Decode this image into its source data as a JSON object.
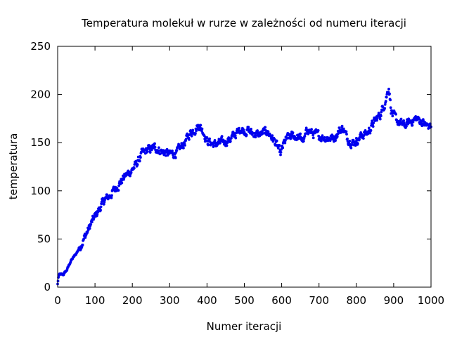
{
  "chart_data": {
    "type": "scatter",
    "title": "Temperatura molekuł w rurze w zależności od numeru iteracji",
    "xlabel": "Numer iteracji",
    "ylabel": "temperatura",
    "xlim": [
      0,
      1000
    ],
    "ylim": [
      0,
      250
    ],
    "xticks": [
      0,
      100,
      200,
      300,
      400,
      500,
      600,
      700,
      800,
      900,
      1000
    ],
    "yticks": [
      0,
      50,
      100,
      150,
      200,
      250
    ],
    "grid": false,
    "legend": "none",
    "point_color": "#0000ee",
    "series": [
      {
        "anchors_x": [
          0,
          2,
          5,
          15,
          25,
          35,
          50,
          65,
          80,
          95,
          110,
          125,
          140,
          160,
          180,
          200,
          215,
          225,
          240,
          260,
          280,
          300,
          320,
          340,
          355,
          370,
          380,
          390,
          400,
          410,
          420,
          440,
          460,
          480,
          490,
          500,
          510,
          520,
          540,
          560,
          570,
          580,
          590,
          597,
          605,
          615,
          630,
          650,
          660,
          670,
          680,
          700,
          720,
          740,
          755,
          765,
          775,
          790,
          800,
          815,
          830,
          845,
          855,
          865,
          875,
          882,
          887,
          890,
          893,
          898,
          905,
          915,
          930,
          945,
          960,
          975,
          990,
          1000
        ],
        "anchors_y": [
          3,
          10,
          13,
          13,
          18,
          27,
          35,
          46,
          58,
          70,
          80,
          90,
          95,
          105,
          115,
          122,
          130,
          138,
          142,
          145,
          141,
          138,
          140,
          150,
          160,
          165,
          168,
          162,
          152,
          150,
          148,
          150,
          153,
          160,
          165,
          162,
          163,
          160,
          158,
          162,
          158,
          152,
          145,
          138,
          148,
          155,
          157,
          155,
          152,
          165,
          160,
          157,
          155,
          155,
          163,
          165,
          155,
          150,
          152,
          158,
          160,
          170,
          175,
          180,
          190,
          200,
          208,
          197,
          185,
          178,
          175,
          170,
          168,
          172,
          175,
          172,
          167,
          168
        ],
        "noise": 3.5,
        "samples": 1000
      }
    ]
  }
}
